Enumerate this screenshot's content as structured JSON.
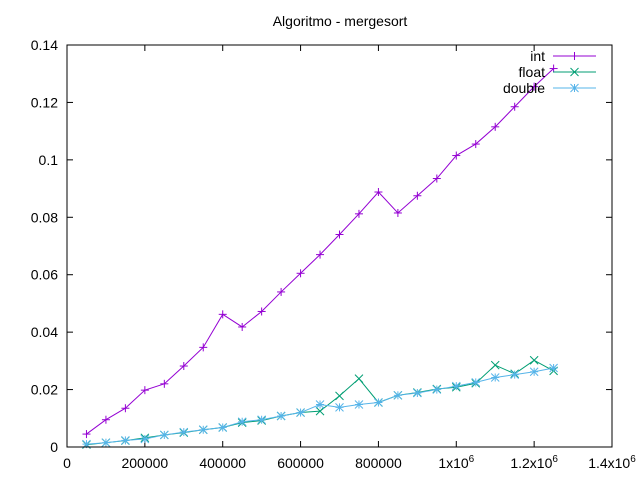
{
  "chart_data": {
    "type": "line",
    "title": "Algoritmo - mergesort",
    "xlabel": "",
    "ylabel": "",
    "xlim": [
      0,
      1400000
    ],
    "ylim": [
      0,
      0.14
    ],
    "grid": false,
    "legend_position": "top-right",
    "x_ticks": [
      {
        "value": 0,
        "label": "0"
      },
      {
        "value": 200000,
        "label": "200000"
      },
      {
        "value": 400000,
        "label": "400000"
      },
      {
        "value": 600000,
        "label": "600000"
      },
      {
        "value": 800000,
        "label": "800000"
      },
      {
        "value": 1000000,
        "label": "1x10",
        "sup": "6"
      },
      {
        "value": 1200000,
        "label": "1.2x10",
        "sup": "6"
      },
      {
        "value": 1400000,
        "label": "1.4x10",
        "sup": "6"
      }
    ],
    "y_ticks": [
      {
        "value": 0,
        "label": "0"
      },
      {
        "value": 0.02,
        "label": "0.02"
      },
      {
        "value": 0.04,
        "label": "0.04"
      },
      {
        "value": 0.06,
        "label": "0.06"
      },
      {
        "value": 0.08,
        "label": "0.08"
      },
      {
        "value": 0.1,
        "label": "0.1"
      },
      {
        "value": 0.12,
        "label": "0.12"
      },
      {
        "value": 0.14,
        "label": "0.14"
      }
    ],
    "x": [
      50000,
      100000,
      150000,
      200000,
      250000,
      300000,
      350000,
      400000,
      450000,
      500000,
      550000,
      600000,
      650000,
      700000,
      750000,
      800000,
      850000,
      900000,
      950000,
      1000000,
      1050000,
      1100000,
      1150000,
      1200000,
      1250000
    ],
    "series": [
      {
        "name": "int",
        "color": "#9400d3",
        "marker": "plus",
        "values": [
          0.0045,
          0.0095,
          0.0135,
          0.0198,
          0.022,
          0.0282,
          0.0347,
          0.0462,
          0.0418,
          0.0472,
          0.054,
          0.0605,
          0.067,
          0.074,
          0.0812,
          0.0888,
          0.0815,
          0.0875,
          0.0935,
          0.1015,
          0.1055,
          0.1115,
          0.1185,
          0.1255,
          0.1318
        ]
      },
      {
        "name": "float",
        "color": "#009e73",
        "marker": "cross",
        "values": [
          0.0008,
          0.0015,
          0.0022,
          0.0032,
          0.0042,
          0.005,
          0.006,
          0.0068,
          0.0085,
          0.0092,
          0.0108,
          0.012,
          0.0125,
          0.0178,
          0.0238,
          0.0155,
          0.018,
          0.019,
          0.0202,
          0.0208,
          0.0222,
          0.0285,
          0.0255,
          0.0302,
          0.0265
        ]
      },
      {
        "name": "double",
        "color": "#56b4e9",
        "marker": "star",
        "values": [
          0.001,
          0.0015,
          0.0023,
          0.0028,
          0.0042,
          0.0052,
          0.006,
          0.0068,
          0.0088,
          0.0095,
          0.0108,
          0.012,
          0.0148,
          0.0138,
          0.0148,
          0.0155,
          0.018,
          0.0188,
          0.02,
          0.0212,
          0.0225,
          0.0242,
          0.0252,
          0.0262,
          0.0275
        ]
      }
    ]
  }
}
